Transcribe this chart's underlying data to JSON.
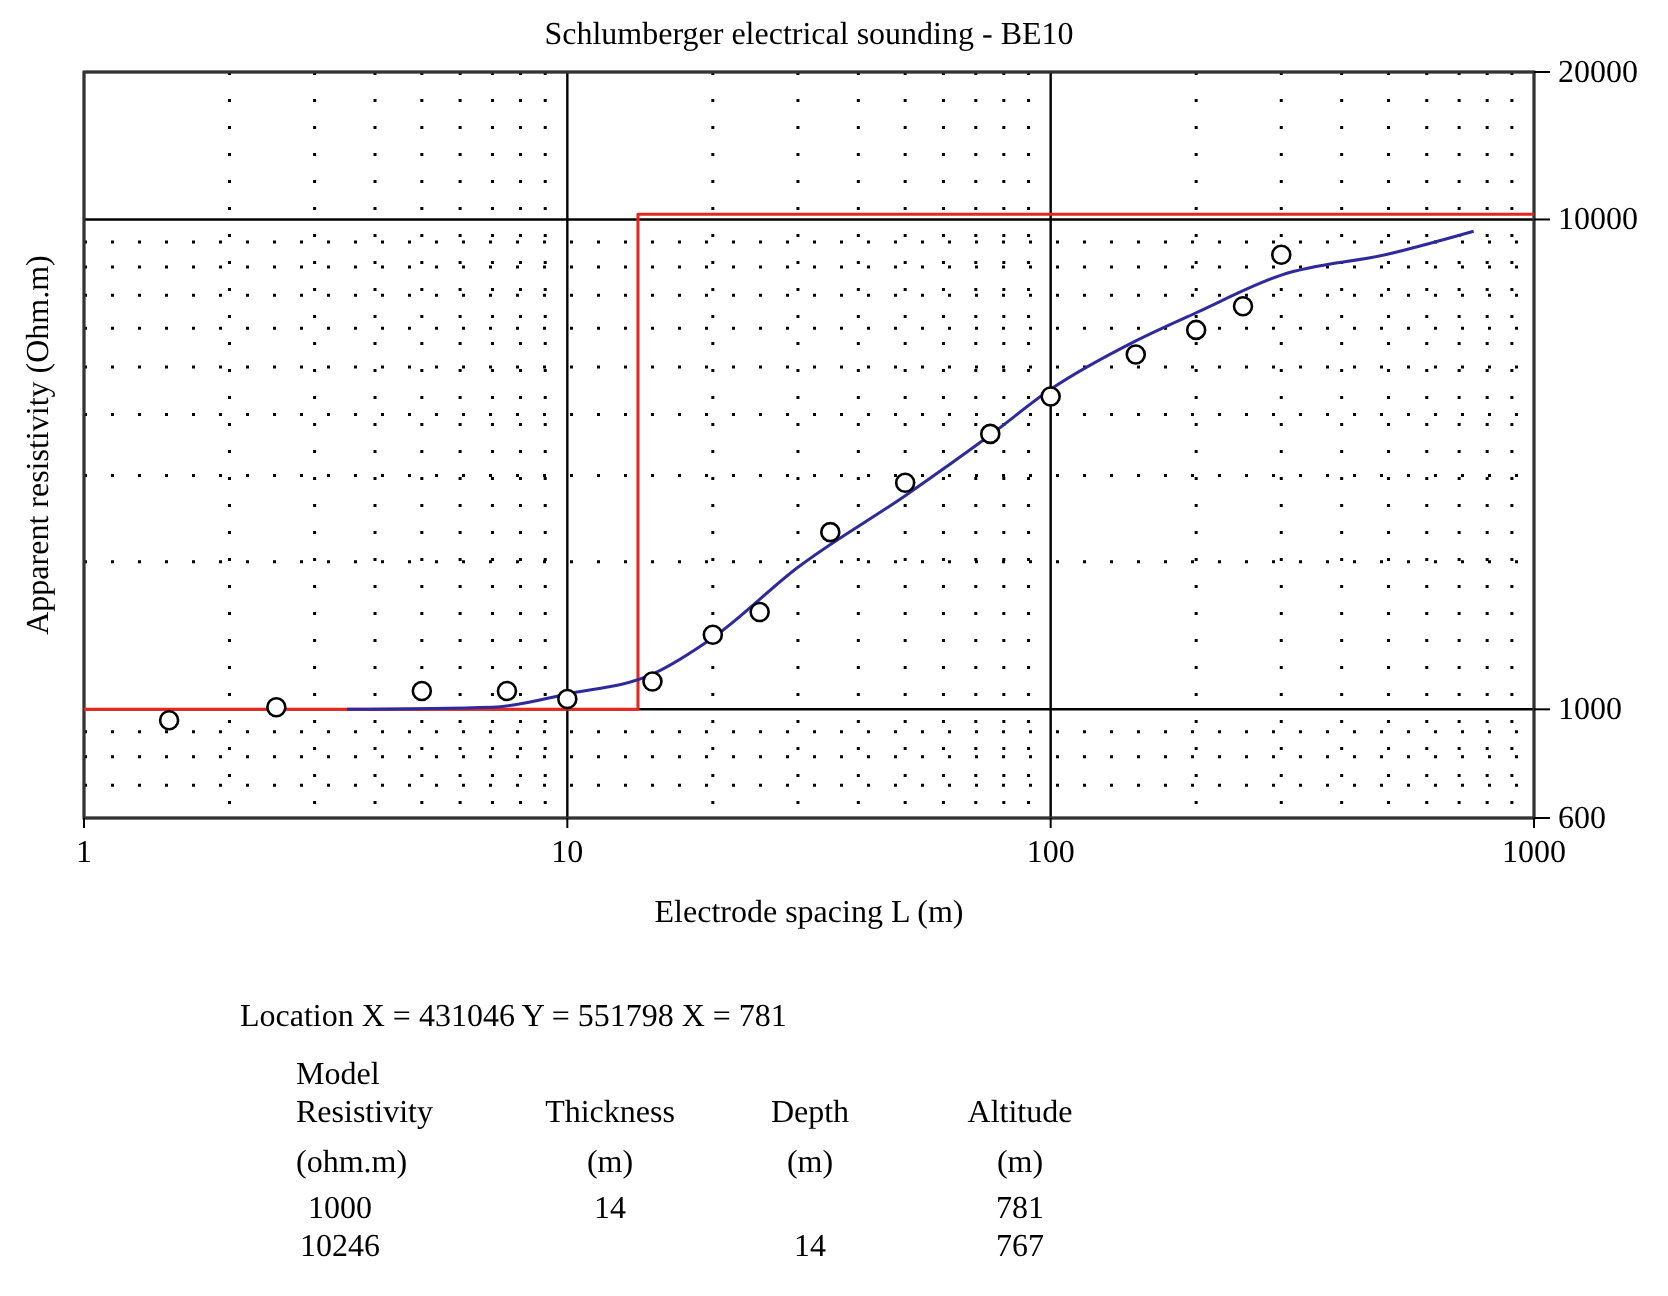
{
  "chart_data": {
    "type": "scatter",
    "title": "Schlumberger electrical sounding - BE10",
    "xlabel": "Electrode spacing L (m)",
    "ylabel": "Apparent resistivity (Ohm.m)",
    "log": "xy",
    "grid": true,
    "xlim": [
      1,
      1000
    ],
    "ylim": [
      600,
      20000
    ],
    "xticks": [
      1,
      {
        "value": 2,
        "label": null
      },
      {
        "value": 3,
        "label": null
      },
      {
        "value": 4,
        "label": null
      },
      {
        "value": 5,
        "label": null
      },
      {
        "value": 6,
        "label": null
      },
      {
        "value": 7,
        "label": null
      },
      {
        "value": 8,
        "label": null
      },
      {
        "value": 9,
        "label": null
      },
      10,
      {
        "value": 20,
        "label": null
      },
      {
        "value": 30,
        "label": null
      },
      {
        "value": 40,
        "label": null
      },
      {
        "value": 50,
        "label": null
      },
      {
        "value": 60,
        "label": null
      },
      {
        "value": 70,
        "label": null
      },
      {
        "value": 80,
        "label": null
      },
      {
        "value": 90,
        "label": null
      },
      100,
      {
        "value": 200,
        "label": null
      },
      {
        "value": 300,
        "label": null
      },
      {
        "value": 400,
        "label": null
      },
      {
        "value": 500,
        "label": null
      },
      {
        "value": 600,
        "label": null
      },
      {
        "value": 700,
        "label": null
      },
      {
        "value": 800,
        "label": null
      },
      {
        "value": 900,
        "label": null
      },
      1000
    ],
    "yticks": [
      600,
      {
        "value": 700,
        "label": null
      },
      {
        "value": 800,
        "label": null
      },
      {
        "value": 900,
        "label": null
      },
      1000,
      {
        "value": 2000,
        "label": null
      },
      {
        "value": 3000,
        "label": null
      },
      {
        "value": 4000,
        "label": null
      },
      {
        "value": 5000,
        "label": null
      },
      {
        "value": 6000,
        "label": null
      },
      {
        "value": 7000,
        "label": null
      },
      {
        "value": 8000,
        "label": null
      },
      {
        "value": 9000,
        "label": null
      },
      10000,
      20000
    ],
    "series": [
      {
        "type": "step",
        "color": "#e8261e",
        "line_style": "solid",
        "x": [
          1,
          14,
          1000
        ],
        "values": [
          1000,
          10246,
          10246
        ]
      },
      {
        "type": "line",
        "color": "#2e2a9c",
        "line_style": "solid",
        "x": [
          3.5,
          7,
          10,
          15,
          20,
          30,
          50,
          75,
          100,
          150,
          200,
          300,
          500,
          750
        ],
        "values": [
          1000,
          1010,
          1075,
          1180,
          1400,
          1950,
          2730,
          3630,
          4500,
          5650,
          6450,
          7700,
          8500,
          9460
        ]
      },
      {
        "color": "#000000",
        "marker": "circle",
        "x": [
          1.5,
          2.5,
          5,
          7.5,
          10,
          15,
          20,
          25,
          35,
          50,
          75,
          100,
          150,
          200,
          250,
          300
        ],
        "values": [
          950,
          1010,
          1090,
          1090,
          1050,
          1140,
          1420,
          1580,
          2300,
          2900,
          3650,
          4350,
          5300,
          5950,
          6650,
          8470
        ]
      }
    ],
    "annotations": [
      "Location X = 431046 Y = 551798 X = 781",
      "Model",
      "Resistivity",
      "Thickness",
      "Depth",
      "Altitude",
      "(ohm.m)",
      "(m)",
      "(m)",
      "(m)",
      "1000",
      "14",
      "781",
      "10246",
      "14",
      "767"
    ]
  }
}
